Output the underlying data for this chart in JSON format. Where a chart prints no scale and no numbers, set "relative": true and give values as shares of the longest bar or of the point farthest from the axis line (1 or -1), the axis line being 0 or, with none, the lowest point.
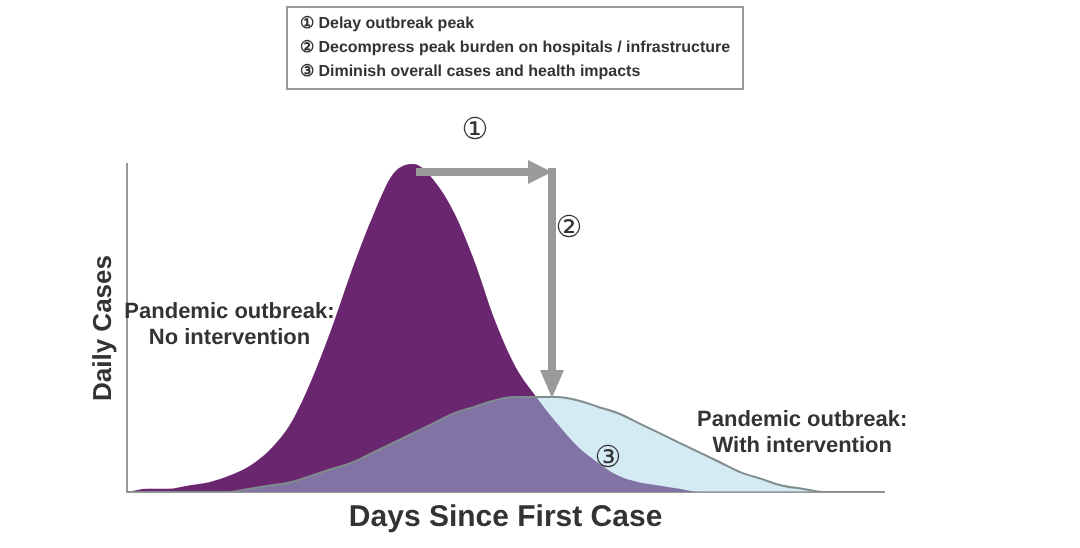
{
  "chart_data": {
    "type": "area",
    "relative": true,
    "xlabel": "Days Since First Case",
    "ylabel": "Daily Cases",
    "categories": [
      null,
      null,
      null,
      null,
      null,
      null,
      null,
      null,
      null,
      null,
      null,
      null,
      null,
      null,
      null,
      null,
      null,
      null,
      null,
      null,
      null,
      null,
      null,
      null,
      null,
      null,
      null,
      null,
      null,
      null,
      null,
      null,
      null,
      null,
      null,
      null,
      null,
      null
    ],
    "series": [
      {
        "name": "Pandemic outbreak: No intervention",
        "color": "#6b2670",
        "values": [
          0,
          0.01,
          0.01,
          0.02,
          0.03,
          0.05,
          0.08,
          0.13,
          0.21,
          0.34,
          0.5,
          0.68,
          0.84,
          0.97,
          1,
          0.95,
          0.85,
          0.7,
          0.52,
          0.38,
          0.29,
          0.21,
          0.14,
          0.09,
          0.05,
          0.03,
          0.02,
          0.01,
          0,
          0,
          0,
          0,
          0,
          0,
          0,
          0,
          0,
          0
        ]
      },
      {
        "name": "Pandemic outbreak: With intervention",
        "color": "#9fd3e6",
        "values": [
          0,
          0,
          0,
          0,
          0,
          0,
          0.01,
          0.02,
          0.03,
          0.05,
          0.07,
          0.09,
          0.12,
          0.15,
          0.18,
          0.21,
          0.24,
          0.26,
          0.28,
          0.29,
          0.29,
          0.29,
          0.28,
          0.26,
          0.24,
          0.21,
          0.18,
          0.15,
          0.12,
          0.09,
          0.06,
          0.04,
          0.02,
          0.01,
          0,
          0,
          0,
          0
        ]
      }
    ],
    "annotations": [
      "① Delay outbreak peak",
      "② Decompress peak burden on hospitals / infrastructure",
      "③ Diminish overall cases and health impacts",
      "①",
      "②",
      "③"
    ]
  }
}
